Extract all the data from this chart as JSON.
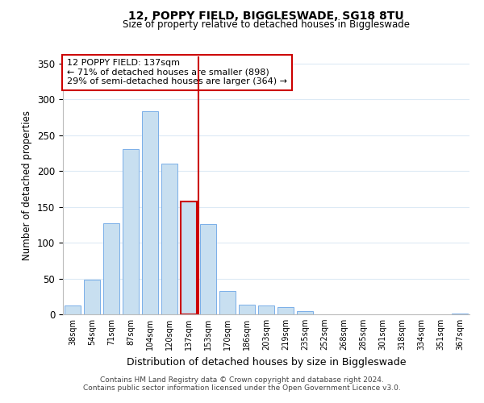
{
  "title": "12, POPPY FIELD, BIGGLESWADE, SG18 8TU",
  "subtitle": "Size of property relative to detached houses in Biggleswade",
  "xlabel": "Distribution of detached houses by size in Biggleswade",
  "ylabel": "Number of detached properties",
  "bar_labels": [
    "38sqm",
    "54sqm",
    "71sqm",
    "87sqm",
    "104sqm",
    "120sqm",
    "137sqm",
    "153sqm",
    "170sqm",
    "186sqm",
    "203sqm",
    "219sqm",
    "235sqm",
    "252sqm",
    "268sqm",
    "285sqm",
    "301sqm",
    "318sqm",
    "334sqm",
    "351sqm",
    "367sqm"
  ],
  "bar_values": [
    12,
    48,
    127,
    231,
    283,
    210,
    157,
    126,
    33,
    13,
    12,
    10,
    5,
    0,
    0,
    0,
    0,
    0,
    0,
    0,
    1
  ],
  "bar_color": "#c8dff0",
  "bar_edge_color": "#7aafe8",
  "highlight_index": 6,
  "highlight_line_color": "#cc0000",
  "ylim": [
    0,
    360
  ],
  "yticks": [
    0,
    50,
    100,
    150,
    200,
    250,
    300,
    350
  ],
  "annotation_title": "12 POPPY FIELD: 137sqm",
  "annotation_line1": "← 71% of detached houses are smaller (898)",
  "annotation_line2": "29% of semi-detached houses are larger (364) →",
  "annotation_box_color": "#ffffff",
  "annotation_box_edge": "#cc0000",
  "footer_line1": "Contains HM Land Registry data © Crown copyright and database right 2024.",
  "footer_line2": "Contains public sector information licensed under the Open Government Licence v3.0.",
  "background_color": "#ffffff",
  "grid_color": "#ddeaf5"
}
